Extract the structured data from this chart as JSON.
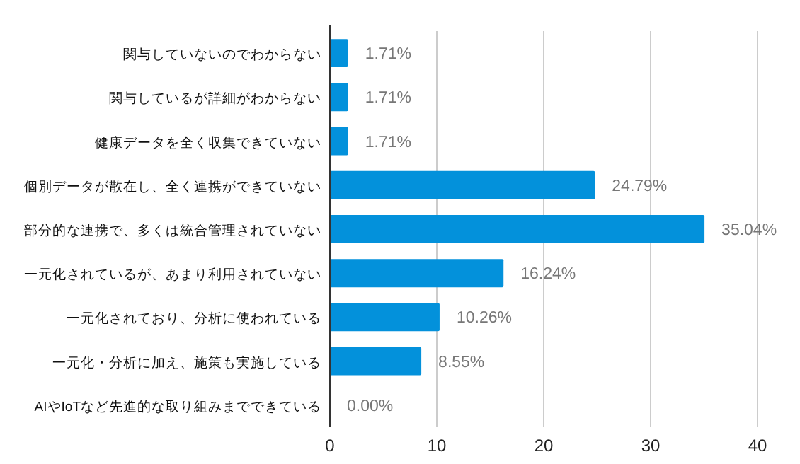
{
  "chart_data": {
    "type": "bar",
    "orientation": "horizontal",
    "categories": [
      "関与していないのでわからない",
      "関与しているが詳細がわからない",
      "健康データを全く収集できていない",
      "個別データが散在し、全く連携ができていない",
      "部分的な連携で、多くは統合管理されていない",
      "一元化されているが、あまり利用されていない",
      "一元化されており、分析に使われている",
      "一元化・分析に加え、施策も実施している",
      "AIやIoTなど先進的な取り組みまでできている"
    ],
    "values": [
      1.71,
      1.71,
      1.71,
      24.79,
      35.04,
      16.24,
      10.26,
      8.55,
      0.0
    ],
    "value_labels": [
      "1.71%",
      "1.71%",
      "1.71%",
      "24.79%",
      "35.04%",
      "16.24%",
      "10.26%",
      "8.55%",
      "0.00%"
    ],
    "color": "#0391db",
    "xlim": [
      0,
      40
    ],
    "xticks": [
      0,
      10,
      20,
      30,
      40
    ],
    "grid": "x"
  }
}
